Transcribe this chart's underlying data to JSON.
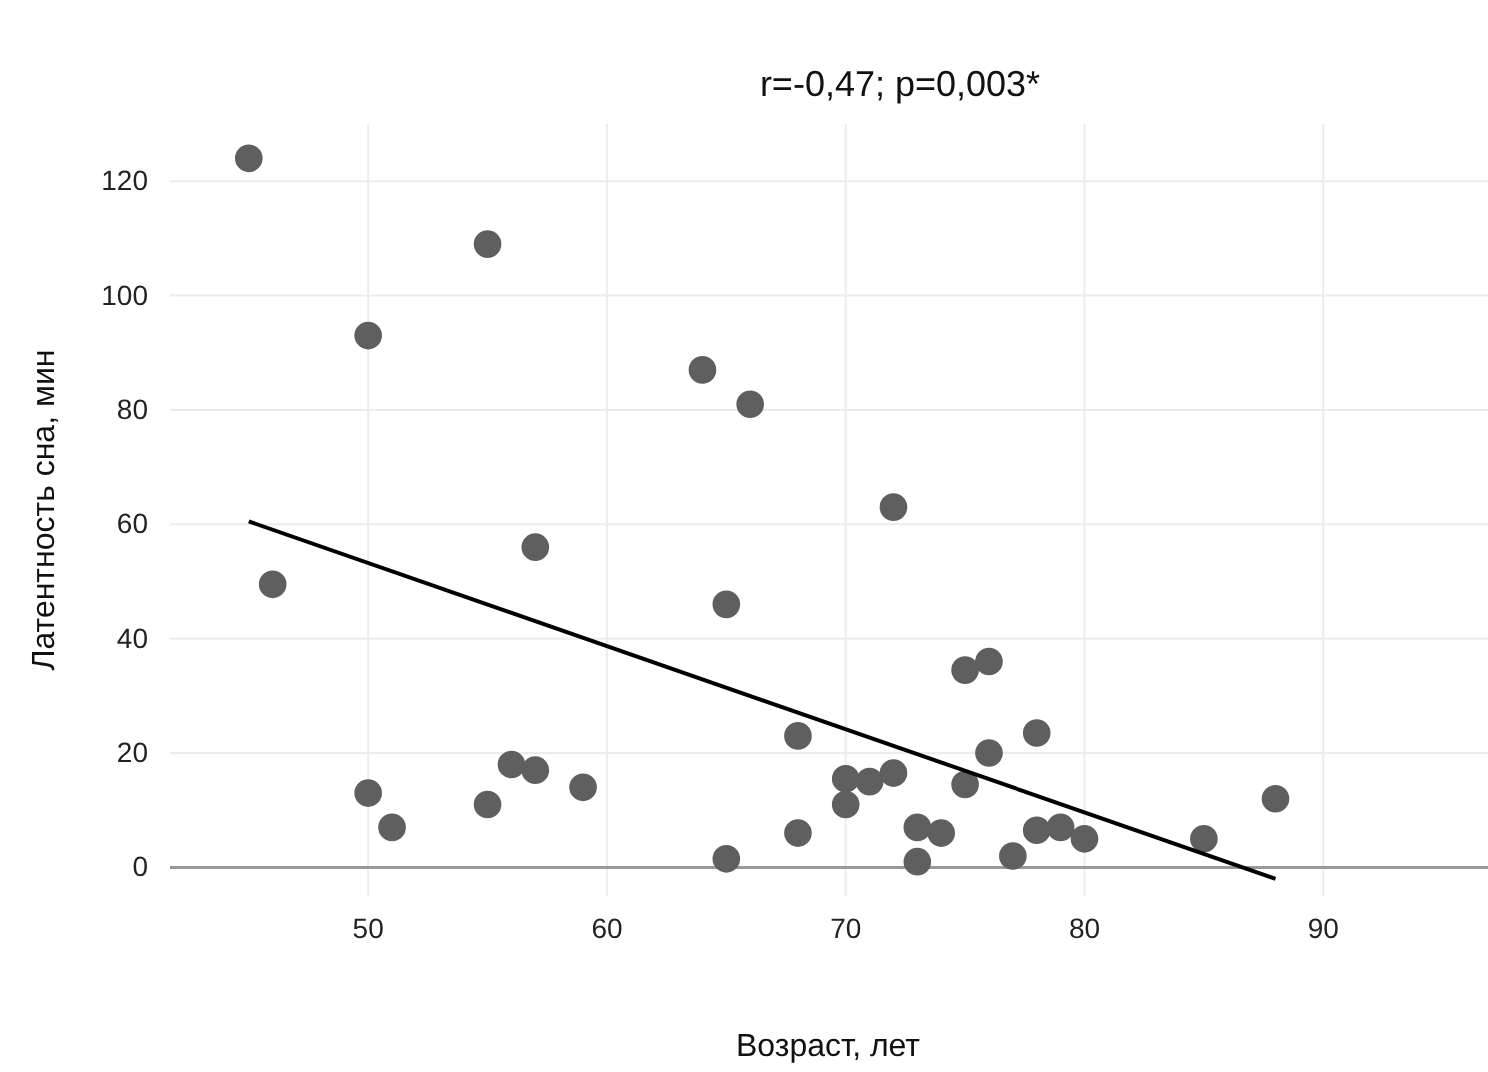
{
  "chart_data": {
    "type": "scatter",
    "title": "r=-0,47; p=0,003*",
    "xlabel": "Возраст, лет",
    "ylabel": "Латентность сна, мин",
    "xlim": [
      41.7,
      96.9
    ],
    "xticks": [
      50,
      60,
      70,
      80,
      90
    ],
    "ylim": [
      -5,
      130
    ],
    "yticks": [
      0,
      20,
      40,
      60,
      80,
      100,
      120
    ],
    "grid": true,
    "series": [
      {
        "marker": "circle",
        "color": "#5f5f5f",
        "x": [
          45,
          46,
          50,
          50,
          51,
          55,
          55,
          56,
          57,
          57,
          59,
          64,
          65,
          65,
          66,
          68,
          68,
          70,
          70,
          71,
          72,
          72,
          73,
          73,
          74,
          75,
          75,
          76,
          76,
          77,
          78,
          78,
          79,
          80,
          85,
          88
        ],
        "values": [
          124,
          49.5,
          93,
          13,
          7,
          109,
          11,
          18,
          17,
          56,
          14,
          87,
          46,
          1.5,
          81,
          23,
          6,
          15.5,
          11,
          15,
          16.5,
          63,
          7,
          1,
          6,
          34.5,
          14.5,
          36,
          20,
          2,
          23.5,
          6.5,
          7,
          5,
          5,
          12
        ]
      },
      {
        "type": "line",
        "color": "#000000",
        "x": [
          45,
          88
        ],
        "values": [
          60.5,
          -2
        ]
      }
    ]
  }
}
